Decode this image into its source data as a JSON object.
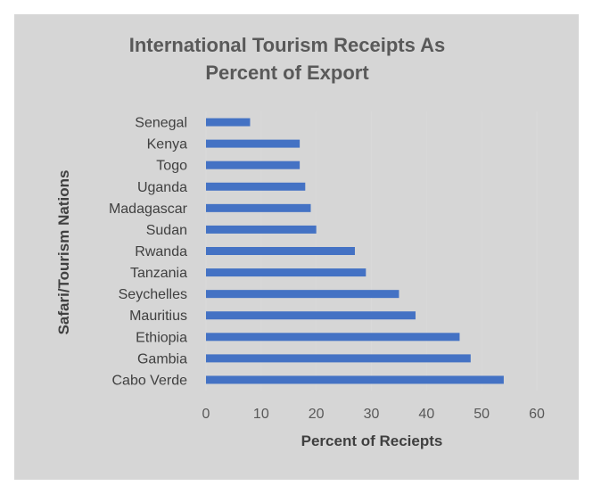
{
  "chart_data": {
    "type": "bar",
    "orientation": "horizontal",
    "title_line1": "International Tourism  Receipts  As",
    "title_line2": "Percent of Export",
    "xlabel": "Percent of Reciepts",
    "ylabel": "Safari/Tourism Nations",
    "categories": [
      "Senegal",
      "Kenya",
      "Togo",
      "Uganda",
      "Madagascar",
      "Sudan",
      "Rwanda",
      "Tanzania",
      "Seychelles",
      "Mauritius",
      "Ethiopia",
      "Gambia",
      "Cabo Verde"
    ],
    "values": [
      8,
      17,
      17,
      18,
      19,
      20,
      27,
      29,
      35,
      38,
      46,
      48,
      54
    ],
    "xlim": [
      0,
      60
    ],
    "xticks": [
      "0",
      "10",
      "20",
      "30",
      "40",
      "50",
      "60"
    ],
    "grid": true,
    "bar_color": "#4472c4",
    "grid_color": "#d9d9d9"
  }
}
